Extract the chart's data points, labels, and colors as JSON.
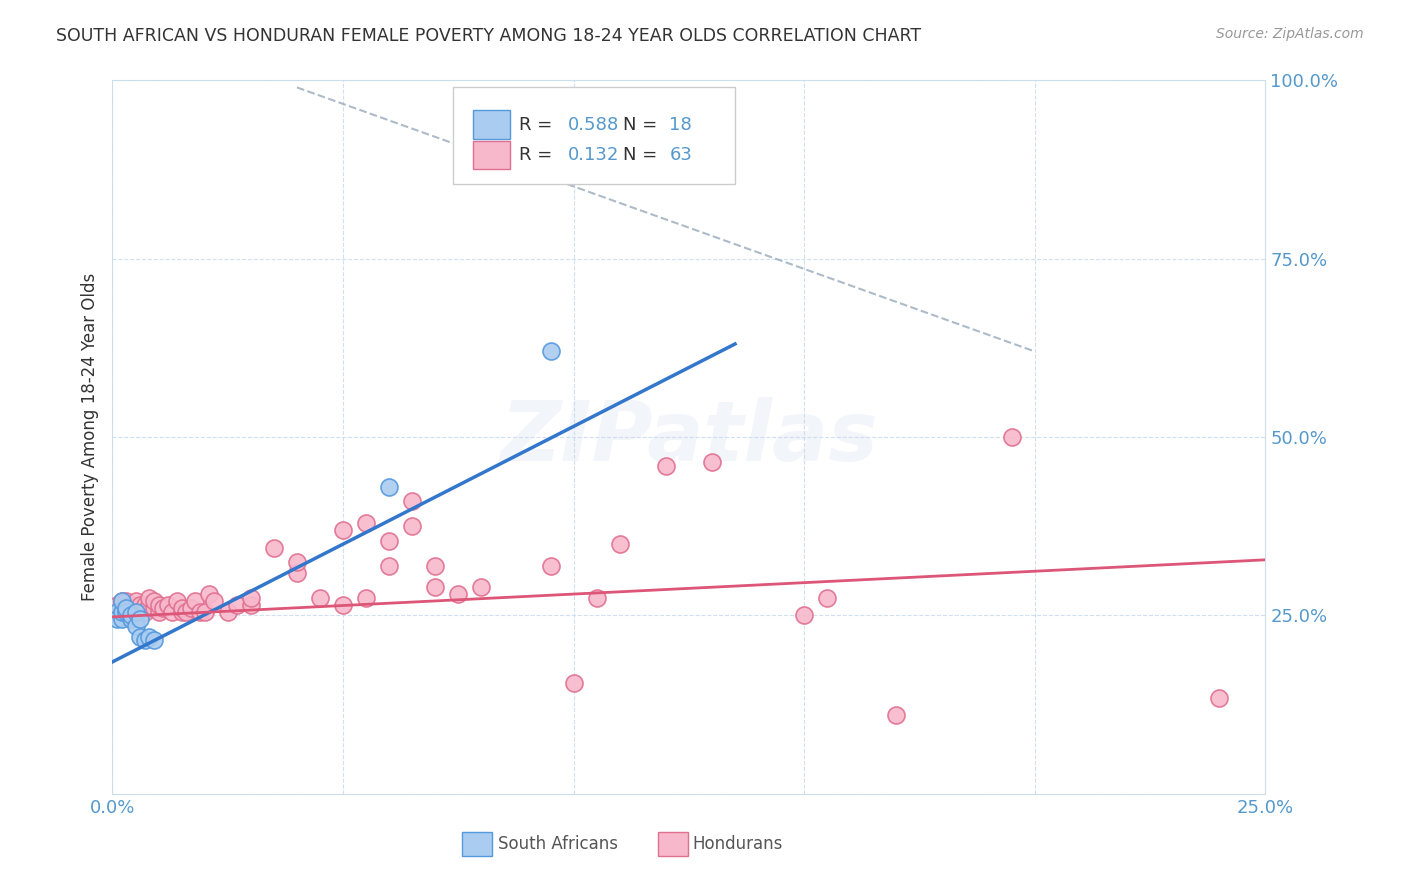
{
  "title": "SOUTH AFRICAN VS HONDURAN FEMALE POVERTY AMONG 18-24 YEAR OLDS CORRELATION CHART",
  "source": "Source: ZipAtlas.com",
  "ylabel": "Female Poverty Among 18-24 Year Olds",
  "xlim": [
    0,
    0.25
  ],
  "ylim": [
    0,
    1.0
  ],
  "xtick_positions": [
    0.0,
    0.05,
    0.1,
    0.15,
    0.2,
    0.25
  ],
  "ytick_positions": [
    0.0,
    0.25,
    0.5,
    0.75,
    1.0
  ],
  "xticklabels": [
    "0.0%",
    "",
    "",
    "",
    "",
    "25.0%"
  ],
  "yticklabels_right": [
    "",
    "25.0%",
    "50.0%",
    "75.0%",
    "100.0%"
  ],
  "sa_color": "#aaccf0",
  "sa_edge_color": "#5599dd",
  "hon_color": "#f8b8cc",
  "hon_edge_color": "#e07090",
  "sa_line_color": "#3377cc",
  "hon_line_color": "#dd5577",
  "diag_line_color": "#99aabb",
  "text_color": "#5599cc",
  "title_color": "#333333",
  "grid_color": "#ccddee",
  "watermark": "ZIPatlas",
  "legend_R_sa_val": "0.588",
  "legend_N_sa_val": "18",
  "legend_R_hon_val": "0.132",
  "legend_N_hon_val": "63",
  "sa_points": [
    [
      0.001,
      0.255
    ],
    [
      0.001,
      0.245
    ],
    [
      0.002,
      0.245
    ],
    [
      0.002,
      0.255
    ],
    [
      0.002,
      0.27
    ],
    [
      0.003,
      0.255
    ],
    [
      0.003,
      0.26
    ],
    [
      0.004,
      0.245
    ],
    [
      0.004,
      0.25
    ],
    [
      0.005,
      0.235
    ],
    [
      0.005,
      0.255
    ],
    [
      0.006,
      0.245
    ],
    [
      0.006,
      0.22
    ],
    [
      0.007,
      0.215
    ],
    [
      0.008,
      0.22
    ],
    [
      0.009,
      0.215
    ],
    [
      0.06,
      0.43
    ],
    [
      0.095,
      0.62
    ]
  ],
  "hon_points": [
    [
      0.001,
      0.265
    ],
    [
      0.002,
      0.255
    ],
    [
      0.002,
      0.27
    ],
    [
      0.003,
      0.265
    ],
    [
      0.003,
      0.27
    ],
    [
      0.004,
      0.26
    ],
    [
      0.004,
      0.265
    ],
    [
      0.005,
      0.255
    ],
    [
      0.005,
      0.27
    ],
    [
      0.006,
      0.255
    ],
    [
      0.006,
      0.265
    ],
    [
      0.007,
      0.255
    ],
    [
      0.007,
      0.265
    ],
    [
      0.008,
      0.265
    ],
    [
      0.008,
      0.275
    ],
    [
      0.009,
      0.26
    ],
    [
      0.009,
      0.27
    ],
    [
      0.01,
      0.255
    ],
    [
      0.01,
      0.265
    ],
    [
      0.011,
      0.26
    ],
    [
      0.012,
      0.265
    ],
    [
      0.013,
      0.255
    ],
    [
      0.014,
      0.27
    ],
    [
      0.015,
      0.255
    ],
    [
      0.015,
      0.26
    ],
    [
      0.016,
      0.255
    ],
    [
      0.017,
      0.26
    ],
    [
      0.018,
      0.27
    ],
    [
      0.019,
      0.255
    ],
    [
      0.02,
      0.255
    ],
    [
      0.021,
      0.28
    ],
    [
      0.022,
      0.27
    ],
    [
      0.025,
      0.255
    ],
    [
      0.027,
      0.265
    ],
    [
      0.03,
      0.265
    ],
    [
      0.03,
      0.275
    ],
    [
      0.035,
      0.345
    ],
    [
      0.04,
      0.31
    ],
    [
      0.04,
      0.325
    ],
    [
      0.045,
      0.275
    ],
    [
      0.05,
      0.265
    ],
    [
      0.05,
      0.37
    ],
    [
      0.055,
      0.275
    ],
    [
      0.055,
      0.38
    ],
    [
      0.06,
      0.32
    ],
    [
      0.06,
      0.355
    ],
    [
      0.065,
      0.375
    ],
    [
      0.065,
      0.41
    ],
    [
      0.07,
      0.29
    ],
    [
      0.07,
      0.32
    ],
    [
      0.075,
      0.28
    ],
    [
      0.08,
      0.29
    ],
    [
      0.095,
      0.32
    ],
    [
      0.1,
      0.155
    ],
    [
      0.105,
      0.275
    ],
    [
      0.11,
      0.35
    ],
    [
      0.12,
      0.46
    ],
    [
      0.13,
      0.465
    ],
    [
      0.15,
      0.25
    ],
    [
      0.155,
      0.275
    ],
    [
      0.17,
      0.11
    ],
    [
      0.195,
      0.5
    ],
    [
      0.24,
      0.135
    ]
  ],
  "sa_line_x": [
    0.0,
    0.135
  ],
  "sa_line_y_intercept": 0.185,
  "sa_line_slope": 3.3,
  "hon_line_x": [
    0.0,
    0.25
  ],
  "hon_line_y_intercept": 0.248,
  "hon_line_slope": 0.32,
  "diag_line": [
    [
      0.04,
      0.99
    ],
    [
      0.2,
      0.62
    ]
  ]
}
